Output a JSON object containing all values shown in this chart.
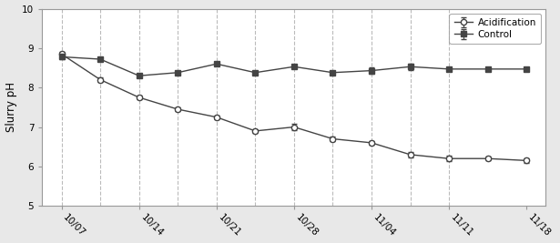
{
  "acidification_y": [
    8.85,
    8.2,
    7.75,
    7.45,
    7.25,
    6.9,
    7.0,
    6.7,
    6.6,
    6.3,
    6.2,
    6.2,
    6.15
  ],
  "acidification_x": [
    1,
    2,
    3,
    4,
    5,
    6,
    7,
    8,
    9,
    10,
    11,
    12,
    13
  ],
  "acidification_yerr": [
    0.05,
    0.05,
    0.05,
    0.05,
    0.05,
    0.05,
    0.08,
    0.05,
    0.05,
    0.07,
    0.07,
    0.05,
    0.05
  ],
  "control_y": [
    8.78,
    8.72,
    8.3,
    8.38,
    8.6,
    8.38,
    8.53,
    8.38,
    8.43,
    8.53,
    8.47,
    8.47,
    8.47
  ],
  "control_x": [
    1,
    2,
    3,
    4,
    5,
    6,
    7,
    8,
    9,
    10,
    11,
    12,
    13
  ],
  "control_yerr": [
    0.05,
    0.05,
    0.05,
    0.05,
    0.05,
    0.05,
    0.05,
    0.05,
    0.08,
    0.08,
    0.05,
    0.05,
    0.05
  ],
  "vline_positions": [
    1,
    2,
    3,
    4,
    5,
    6,
    7,
    8,
    9,
    10,
    11
  ],
  "x_tick_positions": [
    1,
    3,
    5,
    7,
    9,
    11,
    13
  ],
  "x_tick_labels": [
    "10/07",
    "10/14",
    "10/21",
    "10/28",
    "11/04",
    "11/11",
    "11/18"
  ],
  "ylim": [
    5,
    10
  ],
  "yticks": [
    5,
    6,
    7,
    8,
    9,
    10
  ],
  "ylabel": "Slurry pH",
  "legend_labels": [
    "Acidification",
    "Control"
  ],
  "background_color": "#e8e8e8",
  "plot_bg_color": "#ffffff",
  "line_color": "#444444",
  "vline_color": "#bbbbbb",
  "xlim": [
    0.5,
    13.5
  ]
}
